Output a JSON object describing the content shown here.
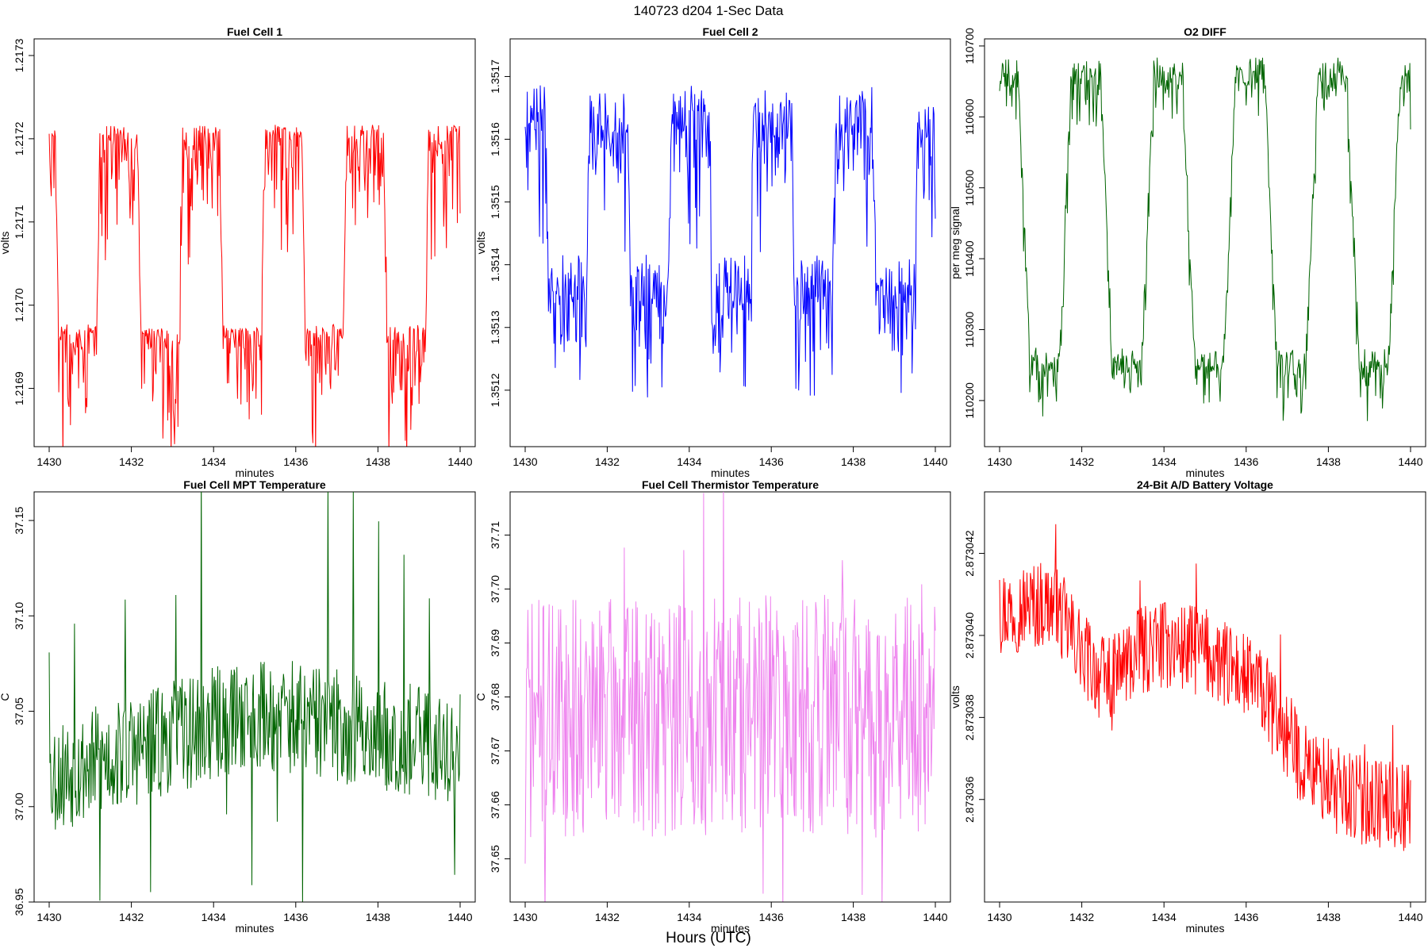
{
  "figure": {
    "title": "140723   d204   1-Sec Data",
    "bottom_label": "Hours (UTC)"
  },
  "chart_data": [
    {
      "type": "line",
      "title": "Fuel Cell 1",
      "xlabel": "minutes",
      "ylabel": "volts",
      "color": "#ff0000",
      "xlim": [
        1430,
        1440
      ],
      "ylim": [
        1.21683,
        1.21732
      ],
      "x_ticks": [
        "1430",
        "1432",
        "1434",
        "1436",
        "1438",
        "1440"
      ],
      "y_ticks": [
        "1.2169",
        "1.2170",
        "1.2171",
        "1.2172",
        "1.2173"
      ],
      "y_tick_values": [
        1.2169,
        1.217,
        1.2171,
        1.2172,
        1.2173
      ],
      "profile": {
        "kind": "square",
        "period": 2.0,
        "start": 1430.0,
        "duty": 0.5,
        "phase_offset": 0.85,
        "high": 1.21721,
        "low": 1.21697,
        "ramp": 0.08,
        "noise_up": 1e-05,
        "noise_down": 0.00016,
        "seed": 11
      },
      "points_per_minute": 60
    },
    {
      "type": "line",
      "title": "Fuel Cell 2",
      "xlabel": "minutes",
      "ylabel": "volts",
      "color": "#0000ff",
      "xlim": [
        1430,
        1440
      ],
      "ylim": [
        1.35111,
        1.35176
      ],
      "x_ticks": [
        "1430",
        "1432",
        "1434",
        "1436",
        "1438",
        "1440"
      ],
      "y_ticks": [
        "1.3512",
        "1.3513",
        "1.3514",
        "1.3515",
        "1.3516",
        "1.3517"
      ],
      "y_tick_values": [
        1.3512,
        1.3513,
        1.3514,
        1.3515,
        1.3516,
        1.3517
      ],
      "profile": {
        "kind": "square",
        "period": 2.0,
        "start": 1430.0,
        "duty": 0.5,
        "phase_offset": 0.5,
        "high": 1.35163,
        "low": 1.35136,
        "ramp": 0.06,
        "noise_up": 8e-05,
        "noise_down": 0.0002,
        "seed": 23
      },
      "points_per_minute": 60
    },
    {
      "type": "line",
      "title": "O2 DIFF",
      "xlabel": "minutes",
      "ylabel": "per meg signal",
      "color": "#006400",
      "xlim": [
        1430,
        1440
      ],
      "ylim": [
        110135,
        110710
      ],
      "x_ticks": [
        "1430",
        "1432",
        "1434",
        "1436",
        "1438",
        "1440"
      ],
      "y_ticks": [
        "110200",
        "110300",
        "110400",
        "110500",
        "110600",
        "110700"
      ],
      "y_tick_values": [
        110200,
        110300,
        110400,
        110500,
        110600,
        110700
      ],
      "profile": {
        "kind": "square",
        "period": 2.0,
        "start": 1430.0,
        "duty": 0.5,
        "phase_offset": 0.55,
        "high": 110660,
        "low": 110250,
        "ramp": 0.3,
        "noise_up": 35,
        "noise_down": 85,
        "seed": 37
      },
      "points_per_minute": 60
    },
    {
      "type": "line",
      "title": "Fuel Cell MPT Temperature",
      "xlabel": "minutes",
      "ylabel": "C",
      "color": "#006400",
      "xlim": [
        1430,
        1440
      ],
      "ylim": [
        36.95,
        37.165
      ],
      "x_ticks": [
        "1430",
        "1432",
        "1434",
        "1436",
        "1438",
        "1440"
      ],
      "y_ticks": [
        "36.95",
        "37.00",
        "37.05",
        "37.10",
        "37.15"
      ],
      "y_tick_values": [
        36.95,
        37.0,
        37.05,
        37.1,
        37.15
      ],
      "profile": {
        "kind": "noise",
        "mean": 37.028,
        "trend": [
          37.015,
          37.05,
          37.03
        ],
        "spread": 0.06,
        "spike": 0.125,
        "spike_every": 37,
        "seed": 53
      },
      "points_per_minute": 60
    },
    {
      "type": "line",
      "title": "Fuel Cell Thermistor Temperature",
      "xlabel": "minutes",
      "ylabel": "C",
      "color": "#ee82ee",
      "xlim": [
        1430,
        1440
      ],
      "ylim": [
        37.642,
        37.718
      ],
      "x_ticks": [
        "1430",
        "1432",
        "1434",
        "1436",
        "1438",
        "1440"
      ],
      "y_ticks": [
        "37.65",
        "37.66",
        "37.67",
        "37.68",
        "37.69",
        "37.70",
        "37.71"
      ],
      "y_tick_values": [
        37.65,
        37.66,
        37.67,
        37.68,
        37.69,
        37.7,
        37.71
      ],
      "profile": {
        "kind": "noise",
        "mean": 37.676,
        "trend": [
          37.676,
          37.677,
          37.676
        ],
        "spread": 0.045,
        "spike": 0.03,
        "spike_every": 29,
        "seed": 71
      },
      "points_per_minute": 60
    },
    {
      "type": "line",
      "title": "24-Bit A/D Battery Voltage",
      "xlabel": "minutes",
      "ylabel": "volts",
      "color": "#ff0000",
      "xlim": [
        1430,
        1440
      ],
      "ylim": [
        2.8730335,
        2.8730435
      ],
      "x_ticks": [
        "1430",
        "1432",
        "1434",
        "1436",
        "1438",
        "1440"
      ],
      "y_ticks": [
        "2.873036",
        "2.873038",
        "2.873040",
        "2.873042"
      ],
      "y_tick_values": [
        2.873036,
        2.873038,
        2.87304,
        2.873042
      ],
      "profile": {
        "kind": "noise",
        "mean": 2.8730395,
        "trend": [
          2.8730406,
          2.8730408,
          2.8730389,
          2.8730398,
          2.8730396,
          2.8730388,
          2.8730367,
          2.873036,
          2.8730358
        ],
        "spread": 2.2e-06,
        "spike": 1.8e-06,
        "spike_every": 41,
        "seed": 97
      },
      "points_per_minute": 60
    }
  ]
}
